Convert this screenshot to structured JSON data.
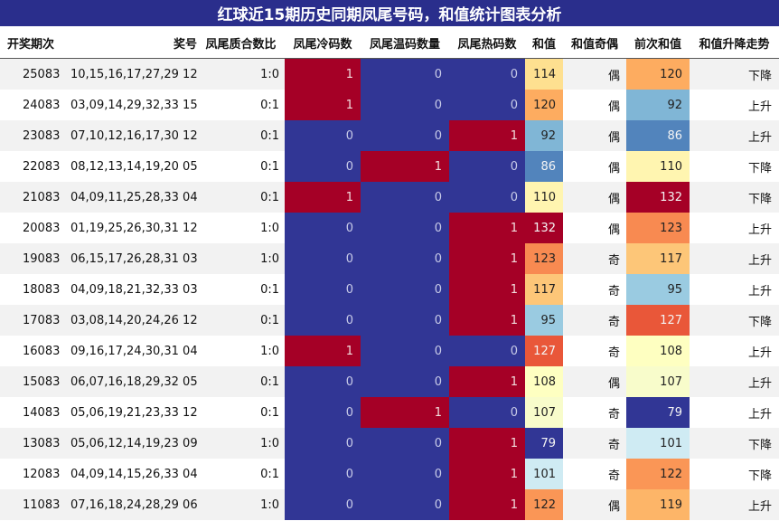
{
  "title": "红球近15期历史同期凤尾号码，和值统计图表分析",
  "chart_data": {
    "type": "table",
    "columns": [
      "开奖期次",
      "奖号",
      "凤尾质合数比",
      "凤尾冷码数",
      "凤尾温码数量",
      "凤尾热码数",
      "和值",
      "和值奇偶",
      "前次和值",
      "和值升降走势"
    ],
    "rows": [
      {
        "period": "25083",
        "numbers": "10,15,16,17,27,29 12",
        "ratio": "1:0",
        "cold": 1,
        "warm": 0,
        "hot": 0,
        "sum": 114,
        "parity": "偶",
        "prev_sum": 120,
        "trend": "下降"
      },
      {
        "period": "24083",
        "numbers": "03,09,14,29,32,33 15",
        "ratio": "0:1",
        "cold": 1,
        "warm": 0,
        "hot": 0,
        "sum": 120,
        "parity": "偶",
        "prev_sum": 92,
        "trend": "上升"
      },
      {
        "period": "23083",
        "numbers": "07,10,12,16,17,30 12",
        "ratio": "0:1",
        "cold": 0,
        "warm": 0,
        "hot": 1,
        "sum": 92,
        "parity": "偶",
        "prev_sum": 86,
        "trend": "上升"
      },
      {
        "period": "22083",
        "numbers": "08,12,13,14,19,20 05",
        "ratio": "0:1",
        "cold": 0,
        "warm": 1,
        "hot": 0,
        "sum": 86,
        "parity": "偶",
        "prev_sum": 110,
        "trend": "下降"
      },
      {
        "period": "21083",
        "numbers": "04,09,11,25,28,33 04",
        "ratio": "0:1",
        "cold": 1,
        "warm": 0,
        "hot": 0,
        "sum": 110,
        "parity": "偶",
        "prev_sum": 132,
        "trend": "下降"
      },
      {
        "period": "20083",
        "numbers": "01,19,25,26,30,31 12",
        "ratio": "1:0",
        "cold": 0,
        "warm": 0,
        "hot": 1,
        "sum": 132,
        "parity": "偶",
        "prev_sum": 123,
        "trend": "上升"
      },
      {
        "period": "19083",
        "numbers": "06,15,17,26,28,31 03",
        "ratio": "1:0",
        "cold": 0,
        "warm": 0,
        "hot": 1,
        "sum": 123,
        "parity": "奇",
        "prev_sum": 117,
        "trend": "上升"
      },
      {
        "period": "18083",
        "numbers": "04,09,18,21,32,33 03",
        "ratio": "0:1",
        "cold": 0,
        "warm": 0,
        "hot": 1,
        "sum": 117,
        "parity": "奇",
        "prev_sum": 95,
        "trend": "上升"
      },
      {
        "period": "17083",
        "numbers": "03,08,14,20,24,26 12",
        "ratio": "0:1",
        "cold": 0,
        "warm": 0,
        "hot": 1,
        "sum": 95,
        "parity": "奇",
        "prev_sum": 127,
        "trend": "下降"
      },
      {
        "period": "16083",
        "numbers": "09,16,17,24,30,31 04",
        "ratio": "1:0",
        "cold": 1,
        "warm": 0,
        "hot": 0,
        "sum": 127,
        "parity": "奇",
        "prev_sum": 108,
        "trend": "上升"
      },
      {
        "period": "15083",
        "numbers": "06,07,16,18,29,32 05",
        "ratio": "0:1",
        "cold": 0,
        "warm": 0,
        "hot": 1,
        "sum": 108,
        "parity": "偶",
        "prev_sum": 107,
        "trend": "上升"
      },
      {
        "period": "14083",
        "numbers": "05,06,19,21,23,33 12",
        "ratio": "0:1",
        "cold": 0,
        "warm": 1,
        "hot": 0,
        "sum": 107,
        "parity": "奇",
        "prev_sum": 79,
        "trend": "上升"
      },
      {
        "period": "13083",
        "numbers": "05,06,12,14,19,23 09",
        "ratio": "1:0",
        "cold": 0,
        "warm": 0,
        "hot": 1,
        "sum": 79,
        "parity": "奇",
        "prev_sum": 101,
        "trend": "下降"
      },
      {
        "period": "12083",
        "numbers": "04,09,14,15,26,33 04",
        "ratio": "0:1",
        "cold": 0,
        "warm": 0,
        "hot": 1,
        "sum": 101,
        "parity": "奇",
        "prev_sum": 122,
        "trend": "下降"
      },
      {
        "period": "11083",
        "numbers": "07,16,18,24,28,29 06",
        "ratio": "1:0",
        "cold": 0,
        "warm": 0,
        "hot": 1,
        "sum": 122,
        "parity": "偶",
        "prev_sum": 119,
        "trend": "上升"
      }
    ]
  },
  "colors": {
    "title_bg": "#2a2e8c",
    "flag_on": "#a50026",
    "flag_off": "#313695",
    "row_stripe": "#f2f2f2"
  }
}
